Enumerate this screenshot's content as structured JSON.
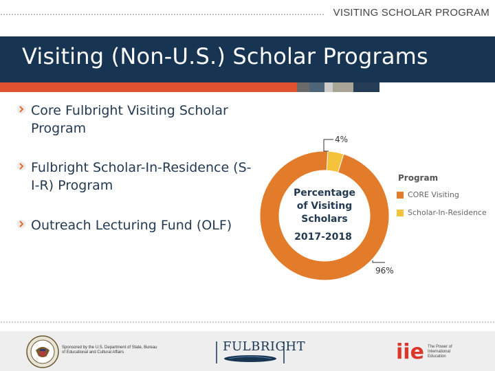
{
  "header": {
    "top_label": "VISITING SCHOLAR PROGRAM",
    "title": "Visiting (Non-U.S.) Scholar Programs"
  },
  "bullets": [
    {
      "text": "Core Fulbright Visiting Scholar Program"
    },
    {
      "text": "Fulbright Scholar-In-Residence (S-I-R) Program"
    },
    {
      "text": "Outreach Lecturing Fund (OLF)"
    }
  ],
  "chart_data": {
    "type": "pie",
    "title": "",
    "center_label_lines": [
      "Percentage",
      "of Visiting",
      "Scholars",
      "2017-2018"
    ],
    "categories": [
      "CORE Visiting",
      "Scholar-In-Residence"
    ],
    "values": [
      96,
      4
    ],
    "value_labels": [
      "96%",
      "4%"
    ],
    "colors": [
      "#e27c2b",
      "#f5c23c"
    ],
    "legend": {
      "title": "Program",
      "placement": "right",
      "entries": [
        "CORE Visiting",
        "Scholar-In-Residence"
      ]
    }
  },
  "colors": {
    "title_bar": "#173553",
    "accent_orange": "#e0512f",
    "stripe_gray": "#6a6a6a",
    "stripe_slate": "#4d6577",
    "stripe_light": "#cccccc",
    "stripe_tan": "#a8a597",
    "bullet_orange": "#e86a2a"
  },
  "footer": {
    "sponsor": "Sponsored by the U.S. Department of State, Bureau of Educational and Cultural Affairs",
    "fulbright_logo": "FULBRIGHT",
    "iie_logo": "iie",
    "iie_text": "The Power of International Education"
  }
}
